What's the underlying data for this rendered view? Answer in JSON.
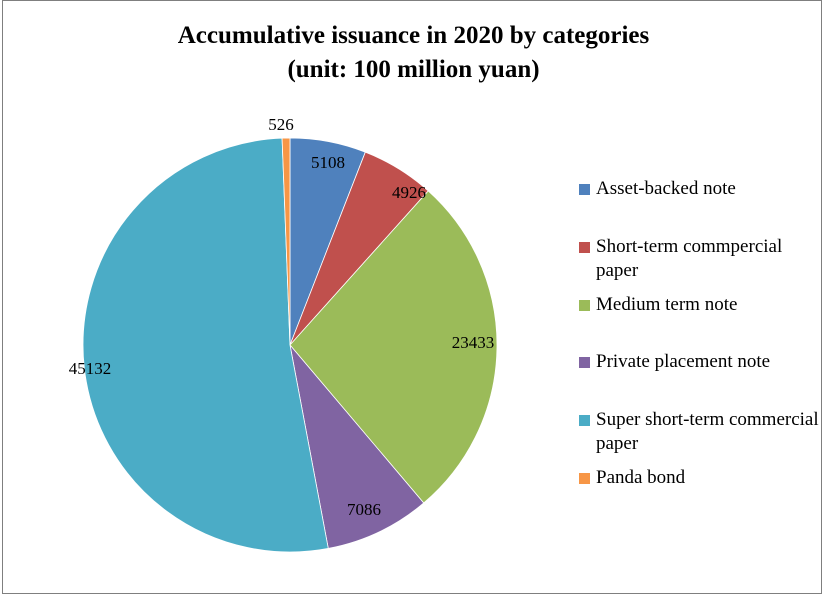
{
  "chart_data": {
    "type": "pie",
    "title": "Accumulative issuance in 2020 by categories",
    "subtitle": "(unit: 100 million yuan)",
    "series": [
      {
        "name": "Asset-backed note",
        "value": 5108,
        "color": "#4F81BD"
      },
      {
        "name": "Short-term commpercial paper",
        "value": 4926,
        "color": "#C0504D"
      },
      {
        "name": "Medium term note",
        "value": 23433,
        "color": "#9BBB59"
      },
      {
        "name": "Private placement note",
        "value": 7086,
        "color": "#8064A2"
      },
      {
        "name": "Super short-term commercial paper",
        "value": 45132,
        "color": "#4BACC6"
      },
      {
        "name": "Panda bond",
        "value": 526,
        "color": "#F79646"
      }
    ],
    "legend_position": "right"
  }
}
